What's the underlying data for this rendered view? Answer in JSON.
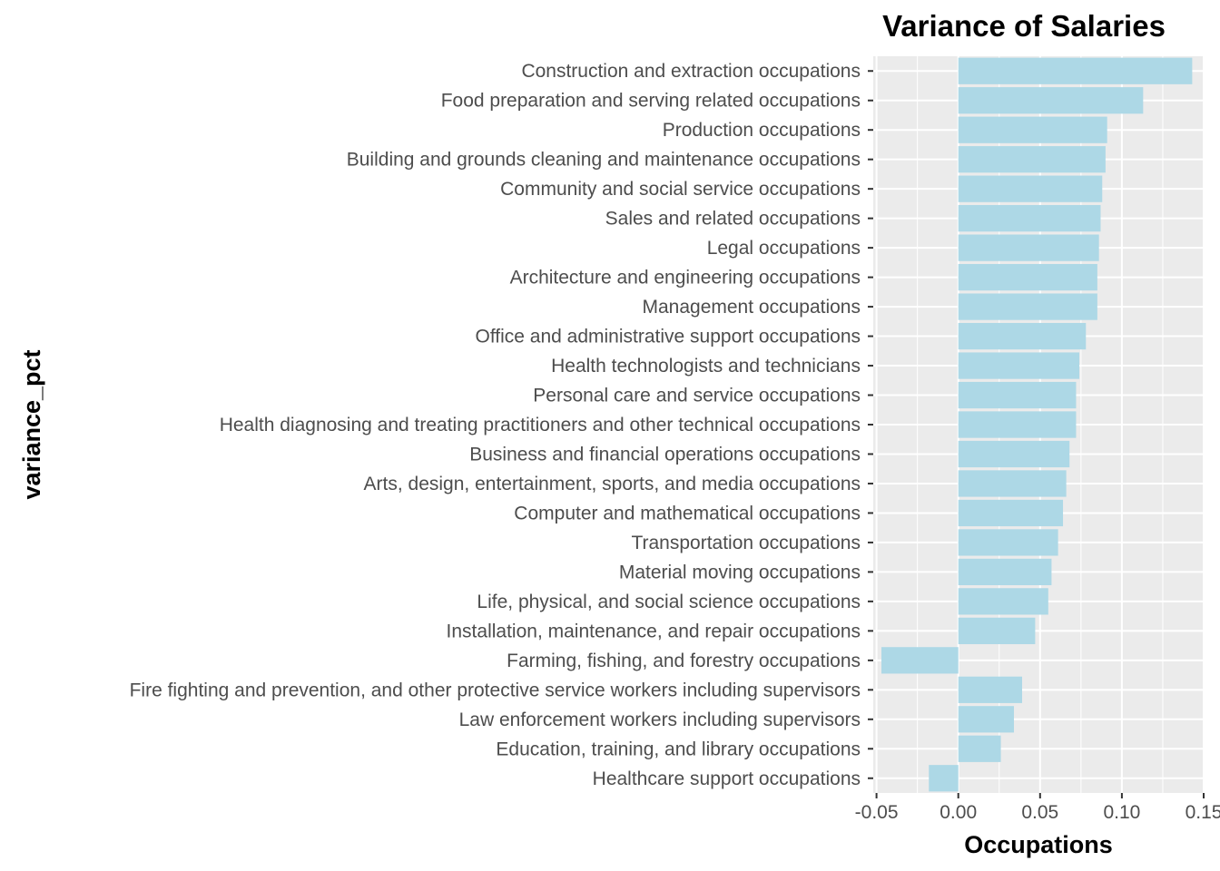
{
  "chart_data": {
    "type": "bar",
    "orientation": "horizontal",
    "title": "Variance of Salaries",
    "xlabel": "Occupations",
    "ylabel": "variance_pct",
    "xlim": [
      -0.052,
      0.15
    ],
    "x_ticks": [
      -0.05,
      0.0,
      0.05,
      0.1,
      0.15
    ],
    "x_tick_labels": [
      "-0.05",
      "0.00",
      "0.05",
      "0.10",
      "0.15"
    ],
    "grid": true,
    "bar_color": "#add8e6",
    "panel_color": "#ebebeb",
    "categories": [
      "Construction and extraction occupations",
      "Food preparation and serving related occupations",
      "Production occupations",
      "Building and grounds cleaning and maintenance occupations",
      "Community and social service occupations",
      "Sales and related occupations",
      "Legal occupations",
      "Architecture and engineering occupations",
      "Management occupations",
      "Office and administrative support occupations",
      "Health technologists and technicians",
      "Personal care and service occupations",
      "Health diagnosing and treating practitioners and other technical occupations",
      "Business and financial operations occupations",
      "Arts, design, entertainment, sports, and media occupations",
      "Computer and mathematical occupations",
      "Transportation occupations",
      "Material moving occupations",
      "Life, physical, and social science occupations",
      "Installation, maintenance, and repair occupations",
      "Farming, fishing, and forestry occupations",
      "Fire fighting and prevention, and other protective service workers including supervisors",
      "Law enforcement workers including supervisors",
      "Education, training, and library occupations",
      "Healthcare support occupations"
    ],
    "values": [
      0.143,
      0.113,
      0.091,
      0.09,
      0.088,
      0.087,
      0.086,
      0.085,
      0.085,
      0.078,
      0.074,
      0.072,
      0.072,
      0.068,
      0.066,
      0.064,
      0.061,
      0.057,
      0.055,
      0.047,
      -0.047,
      0.039,
      0.034,
      0.026,
      -0.018
    ]
  }
}
